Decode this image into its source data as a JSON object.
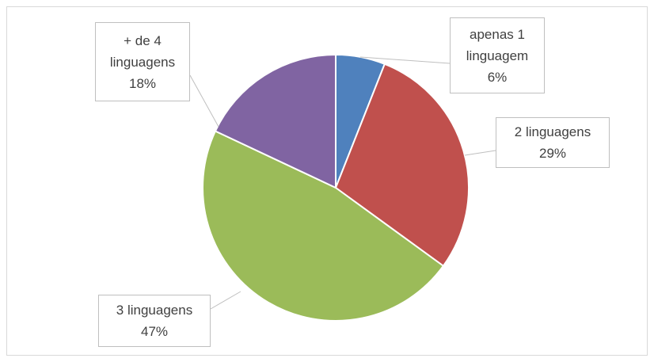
{
  "chart_data": {
    "type": "pie",
    "categories": [
      "apenas 1 linguagem",
      "2 linguagens",
      "3 linguagens",
      "+ de 4 linguagens"
    ],
    "values": [
      6,
      29,
      47,
      18
    ],
    "value_labels": [
      "6%",
      "29%",
      "47%",
      "18%"
    ],
    "colors": [
      "#4f81bd",
      "#c0504d",
      "#9bbb59",
      "#8064a2"
    ]
  }
}
